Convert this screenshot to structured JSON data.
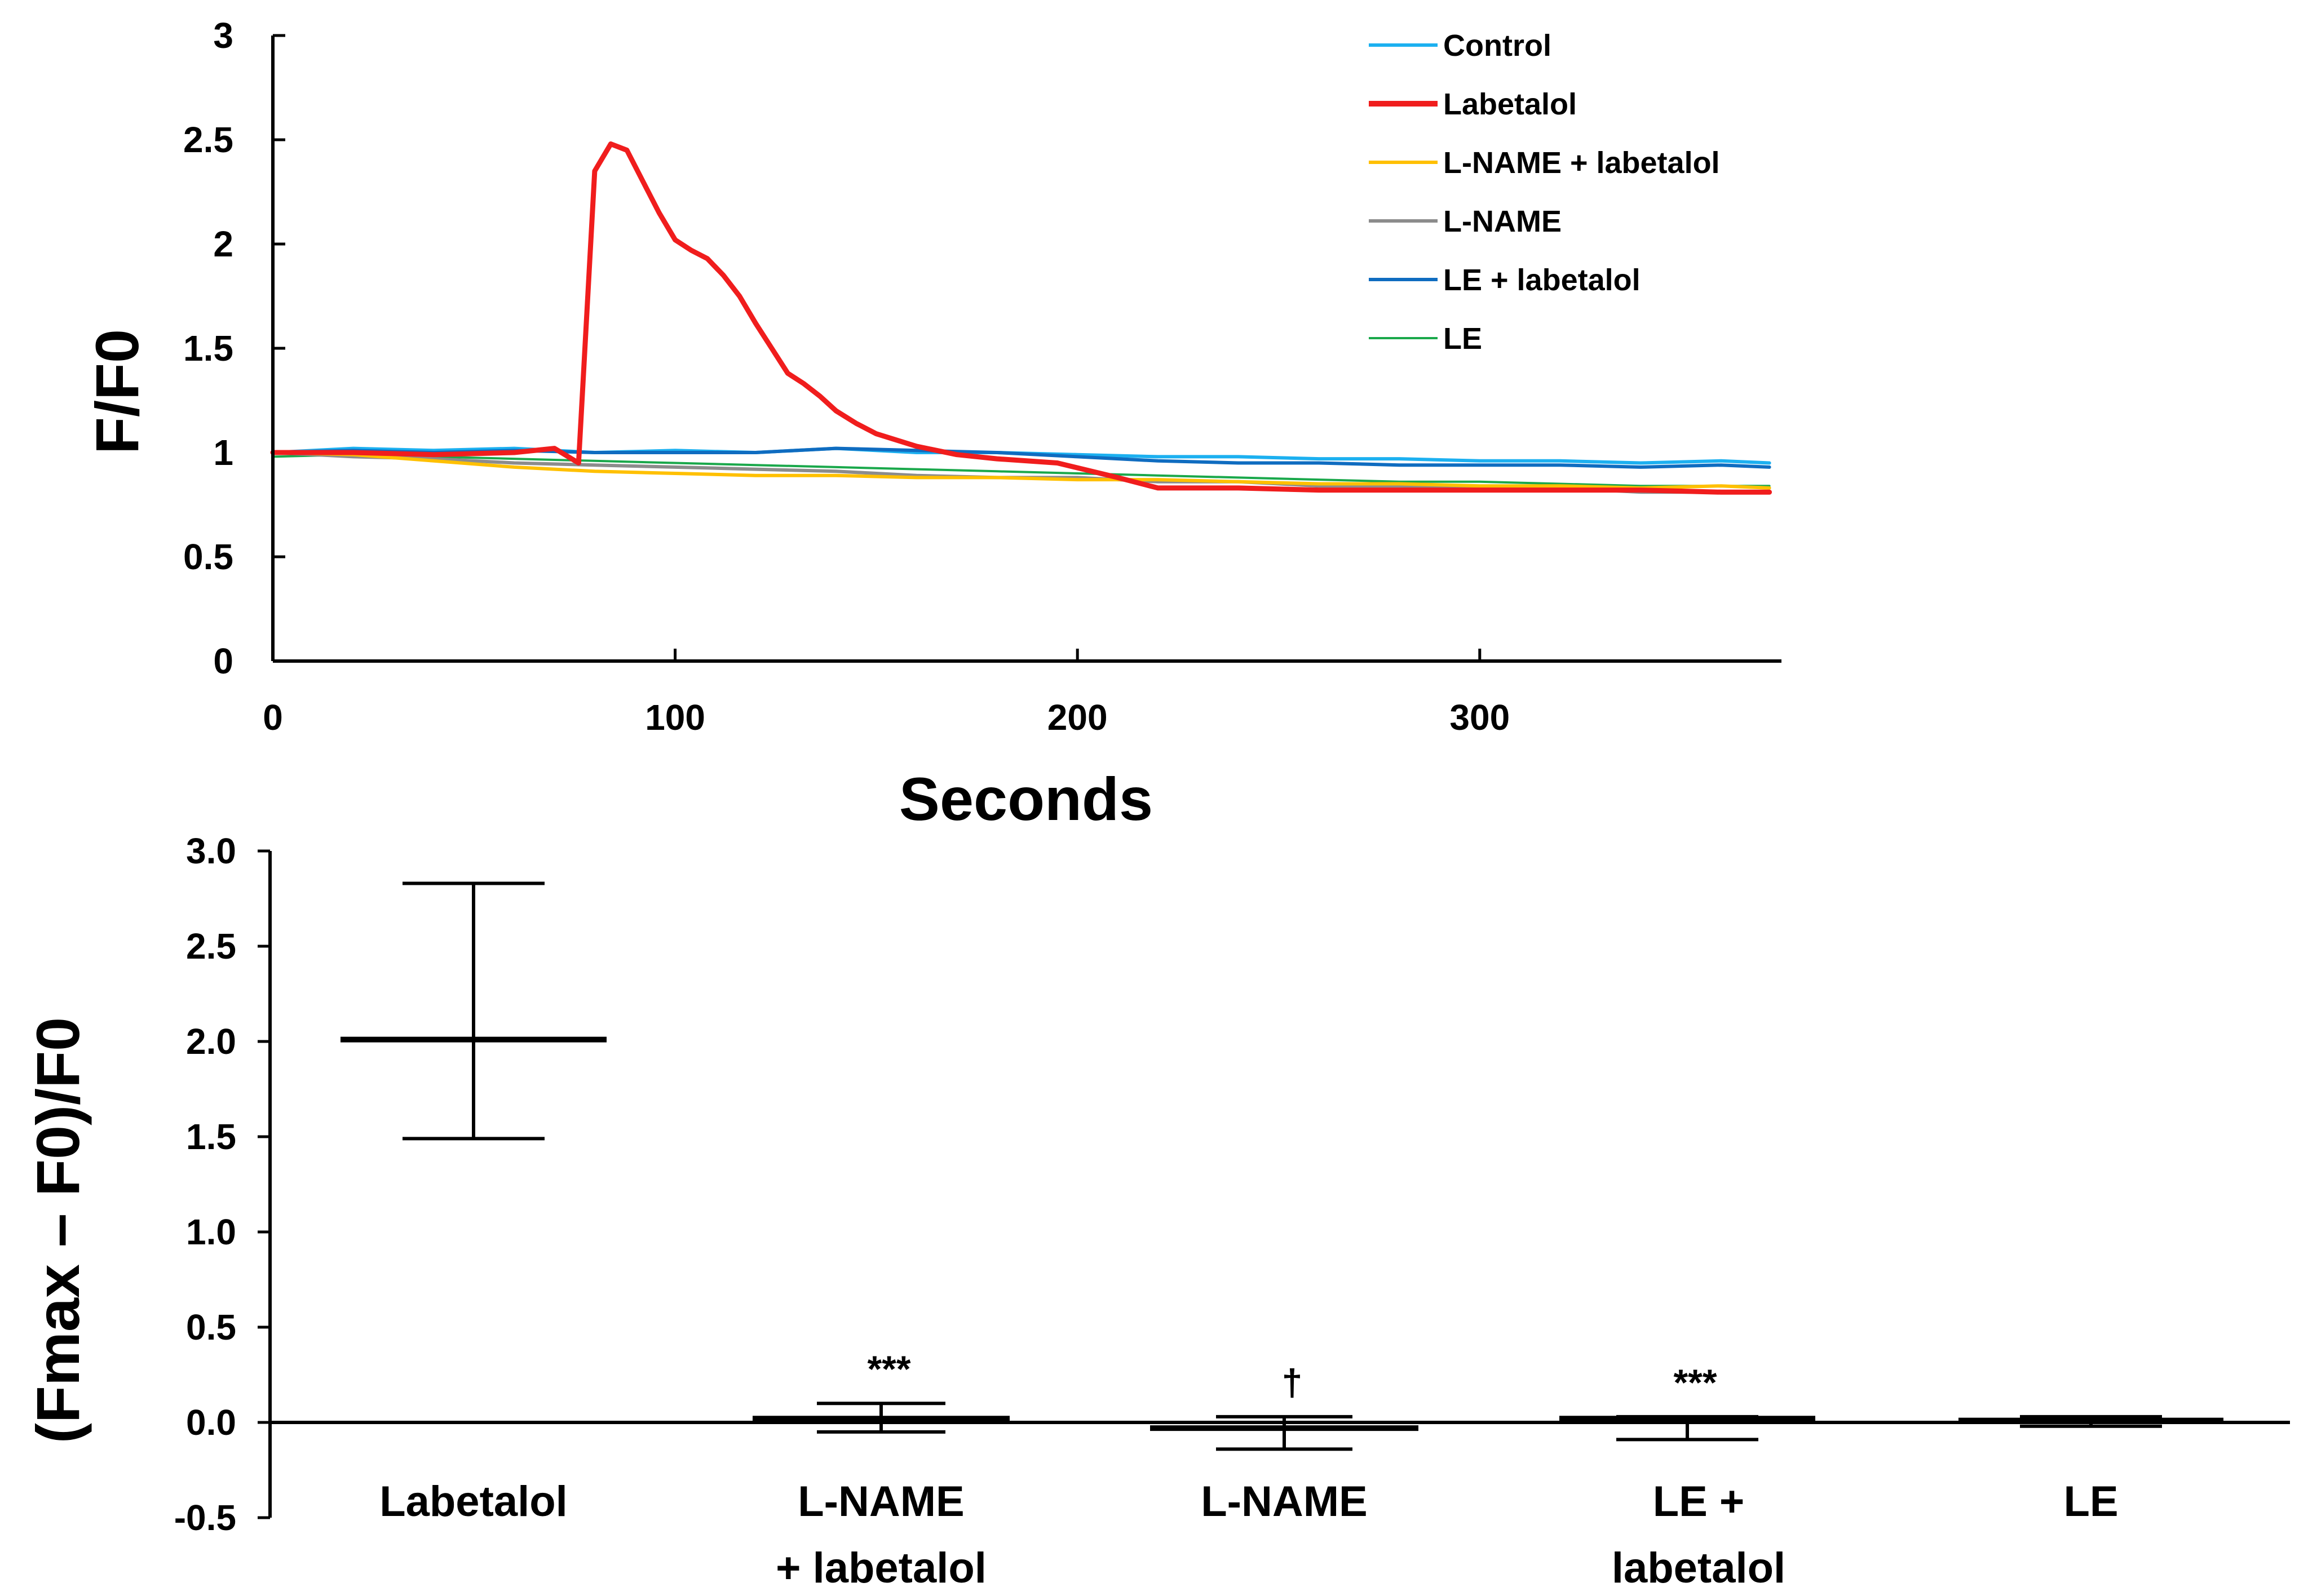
{
  "chart_data": [
    {
      "type": "line",
      "xlabel": "Seconds",
      "ylabel": "F/F0",
      "xlim": [
        0,
        375
      ],
      "ylim": [
        0,
        3
      ],
      "xticks": [
        0,
        100,
        200,
        300
      ],
      "yticks": [
        0,
        0.5,
        1,
        1.5,
        2,
        2.5,
        3
      ],
      "ytick_labels": [
        "0",
        "0.5",
        "1",
        "1.5",
        "2",
        "2.5",
        "3"
      ],
      "legend_position": "top-right",
      "series": [
        {
          "name": "Control",
          "color": "#1CB0F0",
          "x": [
            0,
            20,
            40,
            60,
            80,
            100,
            120,
            140,
            160,
            180,
            200,
            220,
            240,
            260,
            280,
            300,
            320,
            340,
            360,
            372
          ],
          "y": [
            1.0,
            1.02,
            1.01,
            1.02,
            1.0,
            1.01,
            1.0,
            1.02,
            1.0,
            1.0,
            0.99,
            0.98,
            0.98,
            0.97,
            0.97,
            0.96,
            0.96,
            0.95,
            0.96,
            0.95
          ]
        },
        {
          "name": "Labetalol",
          "color": "#F01D1D",
          "x": [
            0,
            20,
            40,
            60,
            70,
            76,
            80,
            84,
            88,
            92,
            96,
            100,
            104,
            108,
            112,
            116,
            120,
            124,
            128,
            132,
            136,
            140,
            145,
            150,
            155,
            160,
            170,
            180,
            195,
            210,
            220,
            240,
            260,
            280,
            300,
            320,
            340,
            360,
            372
          ],
          "y": [
            1.0,
            1.0,
            0.99,
            1.0,
            1.02,
            0.95,
            2.35,
            2.48,
            2.45,
            2.3,
            2.15,
            2.02,
            1.97,
            1.93,
            1.85,
            1.75,
            1.62,
            1.5,
            1.38,
            1.33,
            1.27,
            1.2,
            1.14,
            1.09,
            1.06,
            1.03,
            0.99,
            0.97,
            0.95,
            0.88,
            0.83,
            0.83,
            0.82,
            0.82,
            0.82,
            0.82,
            0.82,
            0.81,
            0.81
          ]
        },
        {
          "name": "L-NAME + labetalol",
          "color": "#FFC000",
          "x": [
            0,
            20,
            40,
            60,
            80,
            100,
            120,
            140,
            160,
            180,
            200,
            220,
            240,
            260,
            280,
            300,
            320,
            340,
            360,
            372
          ],
          "y": [
            1.0,
            0.99,
            0.96,
            0.93,
            0.91,
            0.9,
            0.89,
            0.89,
            0.88,
            0.88,
            0.87,
            0.87,
            0.86,
            0.85,
            0.85,
            0.84,
            0.84,
            0.83,
            0.84,
            0.83
          ]
        },
        {
          "name": "L-NAME",
          "color": "#8C8C8C",
          "x": [
            0,
            20,
            40,
            60,
            80,
            100,
            120,
            140,
            160,
            180,
            200,
            220,
            240,
            260,
            280,
            300,
            320,
            340,
            360,
            372
          ],
          "y": [
            1.0,
            0.98,
            0.97,
            0.95,
            0.94,
            0.93,
            0.92,
            0.91,
            0.89,
            0.88,
            0.88,
            0.86,
            0.86,
            0.84,
            0.84,
            0.83,
            0.83,
            0.81,
            0.81,
            0.81
          ]
        },
        {
          "name": "LE + labetalol",
          "color": "#0F6CC0",
          "x": [
            0,
            20,
            40,
            60,
            80,
            100,
            120,
            140,
            160,
            180,
            200,
            220,
            240,
            260,
            280,
            300,
            320,
            340,
            360,
            372
          ],
          "y": [
            1.0,
            1.01,
            1.0,
            1.01,
            1.0,
            1.0,
            1.0,
            1.02,
            1.01,
            1.0,
            0.98,
            0.96,
            0.95,
            0.95,
            0.94,
            0.94,
            0.94,
            0.93,
            0.94,
            0.93
          ]
        },
        {
          "name": "LE",
          "color": "#1AA84B",
          "x": [
            0,
            20,
            40,
            60,
            80,
            100,
            120,
            140,
            160,
            180,
            200,
            220,
            240,
            260,
            280,
            300,
            320,
            340,
            360,
            372
          ],
          "y": [
            0.98,
            0.99,
            0.98,
            0.97,
            0.96,
            0.95,
            0.94,
            0.93,
            0.92,
            0.91,
            0.9,
            0.89,
            0.88,
            0.87,
            0.86,
            0.86,
            0.85,
            0.84,
            0.84,
            0.84
          ]
        }
      ]
    },
    {
      "type": "bar",
      "ylabel": "(Fmax – F0)/F0",
      "ylim": [
        -0.5,
        3.0
      ],
      "yticks": [
        -0.5,
        0.0,
        0.5,
        1.0,
        1.5,
        2.0,
        2.5,
        3.0
      ],
      "ytick_labels": [
        "-0.5",
        "0.0",
        "0.5",
        "1.0",
        "1.5",
        "2.0",
        "2.5",
        "3.0"
      ],
      "category_labels": [
        [
          "Labetalol"
        ],
        [
          "L-NAME",
          "+ labetalol"
        ],
        [
          "L-NAME"
        ],
        [
          "LE  +",
          "labetalol"
        ],
        [
          "LE"
        ]
      ],
      "values": [
        2.01,
        0.02,
        -0.03,
        0.02,
        0.01
      ],
      "error_upper": [
        2.83,
        0.1,
        0.03,
        0.03,
        0.03
      ],
      "error_lower": [
        1.49,
        -0.05,
        -0.14,
        -0.09,
        -0.02
      ],
      "annotations": [
        "",
        "***",
        "†",
        "***",
        ""
      ]
    }
  ]
}
